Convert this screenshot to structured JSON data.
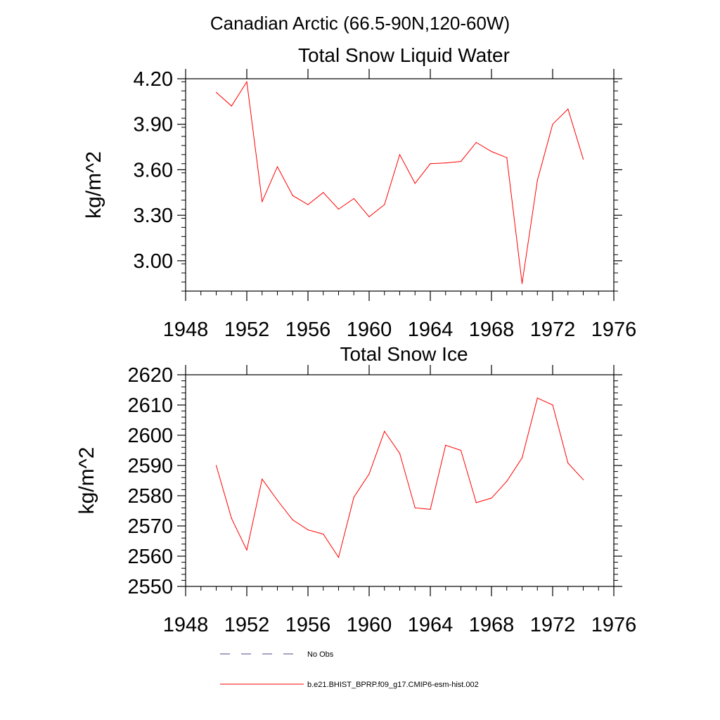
{
  "figure": {
    "title": "Canadian Arctic (66.5-90N,120-60W)"
  },
  "legend": {
    "entries": [
      {
        "label": "No Obs",
        "color": "#4a4a8a",
        "dash": true
      },
      {
        "label": "b.e21.BHIST_BPRP.f09_g17.CMIP6-esm-hist.002",
        "color": "#ff0000",
        "dash": false
      }
    ]
  },
  "colors": {
    "series": "#ff0000",
    "axis": "#000000"
  },
  "chart_data": [
    {
      "type": "line",
      "title": "Total Snow Liquid Water",
      "xlabel": "",
      "ylabel": "kg/m^2",
      "xlim": [
        1948,
        1976
      ],
      "ylim": [
        2.8,
        4.2
      ],
      "xticks": [
        1948,
        1952,
        1956,
        1960,
        1964,
        1968,
        1972,
        1976
      ],
      "xtick_labels": [
        "1948",
        "1952",
        "1956",
        "1960",
        "1964",
        "1968",
        "1972",
        "1976"
      ],
      "yticks": [
        3.0,
        3.3,
        3.6,
        3.9,
        4.2
      ],
      "ytick_labels": [
        "3.00",
        "3.30",
        "3.60",
        "3.90",
        "4.20"
      ],
      "yminor_step": 0.06,
      "grid": false,
      "series": [
        {
          "x": [
            1950,
            1951,
            1952,
            1953,
            1954,
            1955,
            1956,
            1957,
            1958,
            1959,
            1960,
            1961,
            1962,
            1963,
            1964,
            1965,
            1966,
            1967,
            1968,
            1969,
            1970,
            1971,
            1972,
            1973,
            1974
          ],
          "values": [
            4.11,
            4.02,
            4.18,
            3.39,
            3.62,
            3.43,
            3.37,
            3.45,
            3.34,
            3.41,
            3.29,
            3.37,
            3.7,
            3.51,
            3.64,
            3.645,
            3.655,
            3.78,
            3.72,
            3.68,
            2.85,
            3.53,
            3.9,
            4.0,
            3.67
          ]
        }
      ]
    },
    {
      "type": "line",
      "title": "Total Snow Ice",
      "xlabel": "",
      "ylabel": "kg/m^2",
      "xlim": [
        1948,
        1976
      ],
      "ylim": [
        2550,
        2620
      ],
      "xticks": [
        1948,
        1952,
        1956,
        1960,
        1964,
        1968,
        1972,
        1976
      ],
      "xtick_labels": [
        "1948",
        "1952",
        "1956",
        "1960",
        "1964",
        "1968",
        "1972",
        "1976"
      ],
      "yticks": [
        2550,
        2560,
        2570,
        2580,
        2590,
        2600,
        2610,
        2620
      ],
      "ytick_labels": [
        "2550",
        "2560",
        "2570",
        "2580",
        "2590",
        "2600",
        "2610",
        "2620"
      ],
      "yminor_step": 2,
      "grid": false,
      "series": [
        {
          "x": [
            1950,
            1951,
            1952,
            1953,
            1954,
            1955,
            1956,
            1957,
            1958,
            1959,
            1960,
            1961,
            1962,
            1963,
            1964,
            1965,
            1966,
            1967,
            1968,
            1969,
            1970,
            1971,
            1972,
            1973,
            1974
          ],
          "values": [
            2590,
            2572.5,
            2562,
            2585.5,
            2578.5,
            2572,
            2568.7,
            2567.3,
            2559.6,
            2579.5,
            2587.2,
            2601.3,
            2594,
            2576,
            2575.5,
            2596.7,
            2595,
            2577.7,
            2579.2,
            2584.8,
            2592.5,
            2612.3,
            2610,
            2590.8,
            2585.3
          ]
        }
      ]
    }
  ]
}
